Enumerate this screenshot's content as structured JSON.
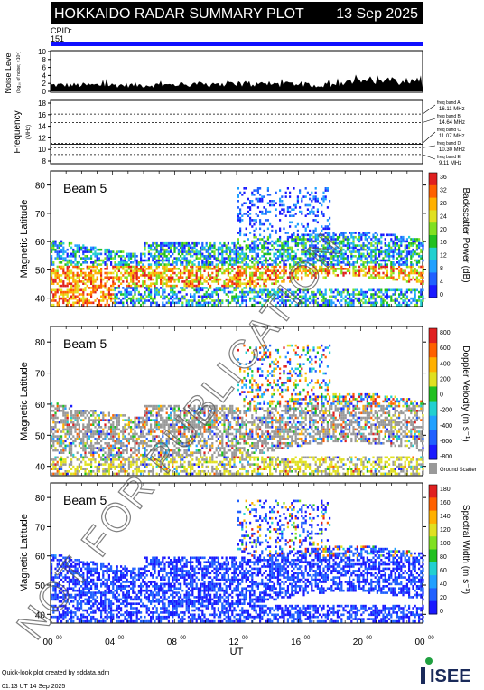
{
  "header": {
    "title": "HOKKAIDO RADAR SUMMARY PLOT",
    "date": "13 Sep 2025"
  },
  "cpid": {
    "label": "CPID:",
    "value": "151"
  },
  "noise_panel": {
    "ylabel": "Noise Level",
    "ylabel_sub": "(log₁₀ of noise; ×10⁵)",
    "yticks": [
      "10",
      "8",
      "6",
      "4",
      "2",
      "0"
    ]
  },
  "freq_panel": {
    "ylabel": "Frequency",
    "unit": "(MHz)",
    "yticks": [
      "18",
      "16",
      "14",
      "12",
      "10",
      "8"
    ],
    "bands": [
      {
        "label": "freq band A",
        "value": "16.11 MHz"
      },
      {
        "label": "freq band B",
        "value": "14.64 MHz"
      },
      {
        "label": "freq band C",
        "value": "11.07 MHz"
      },
      {
        "label": "freq band D",
        "value": "10.30 MHz"
      },
      {
        "label": "freq band E",
        "value": "9.11 MHz"
      }
    ]
  },
  "chart_data": [
    {
      "type": "heatmap",
      "beam_label": "Beam  5",
      "ylabel": "Magnetic Latitude",
      "yticks": [
        "80",
        "70",
        "60",
        "50",
        "40"
      ],
      "colorbar_label": "Backscatter Power (dB)",
      "colorbar_ticks": [
        "36",
        "32",
        "28",
        "24",
        "20",
        "16",
        "12",
        "8",
        "4",
        "0"
      ],
      "colors": [
        "#1a1aff",
        "#2060ff",
        "#20a0ff",
        "#20d0d0",
        "#20c020",
        "#80e020",
        "#e0e020",
        "#ffb000",
        "#ff6000",
        "#e02020"
      ]
    },
    {
      "type": "heatmap",
      "beam_label": "Beam  5",
      "ylabel": "Magnetic Latitude",
      "yticks": [
        "80",
        "70",
        "60",
        "50",
        "40"
      ],
      "colorbar_label": "Doppler Velocity (m s⁻¹)",
      "colorbar_ticks": [
        "800",
        "600",
        "400",
        "200",
        "0",
        "-200",
        "-400",
        "-600",
        "-800"
      ],
      "colors": [
        "#1a1aff",
        "#2060ff",
        "#20a0ff",
        "#20d0d0",
        "#20c020",
        "#e0e020",
        "#ffb000",
        "#ff6000",
        "#e02020"
      ],
      "ground_label": "Ground Scatter"
    },
    {
      "type": "heatmap",
      "beam_label": "Beam  5",
      "ylabel": "Magnetic Latitude",
      "yticks": [
        "80",
        "70",
        "60",
        "50",
        "40"
      ],
      "colorbar_label": "Spectral Width (m s⁻¹)",
      "colorbar_ticks": [
        "180",
        "160",
        "140",
        "120",
        "100",
        "80",
        "60",
        "40",
        "20",
        "0"
      ],
      "colors": [
        "#1a1aff",
        "#2060ff",
        "#20a0ff",
        "#20d0d0",
        "#20c020",
        "#80e020",
        "#e0e020",
        "#ffb000",
        "#ff6000",
        "#e02020"
      ]
    }
  ],
  "xaxis": {
    "ticks": [
      "00",
      "04",
      "08",
      "12",
      "16",
      "20",
      "00"
    ],
    "tick_sup": "00",
    "label": "UT"
  },
  "watermark": "NOT FOR PUBLICATION",
  "footer": {
    "line1": "Quick-look plot created by sddata.adm",
    "line2": "01:13 UT 14 Sep 2025"
  },
  "logo": "ISEE"
}
